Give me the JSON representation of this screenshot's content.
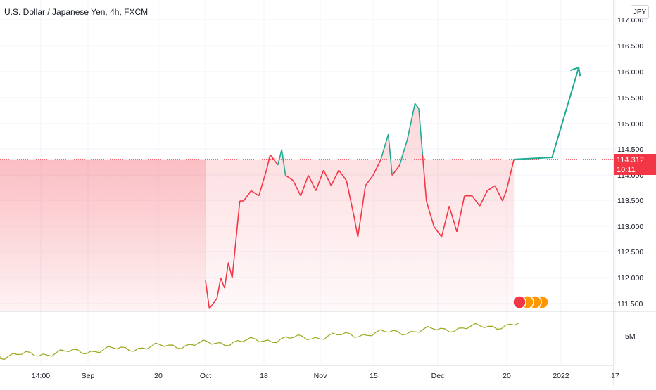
{
  "chart_title": "U.S. Dollar / Japanese Yen, 4h, FXCM",
  "currency_button": "JPY",
  "last_price": {
    "value": "114.312",
    "countdown": "10:11"
  },
  "volume_label": "5M",
  "colors": {
    "down": "#f23645",
    "up": "#22ab94",
    "volume": "#9aa617",
    "grid": "#f0f3fa"
  },
  "chart_data": {
    "type": "line",
    "title": "U.S. Dollar / Japanese Yen, 4h, FXCM",
    "y_ticks": [
      "111.500",
      "112.000",
      "112.500",
      "113.000",
      "113.500",
      "114.000",
      "114.500",
      "115.000",
      "115.500",
      "116.000",
      "116.500",
      "117.000"
    ],
    "x_ticks": [
      "14:00",
      "Sep",
      "20",
      "Oct",
      "18",
      "Nov",
      "15",
      "Dec",
      "20",
      "2022",
      "17"
    ],
    "ylim": [
      111.4,
      117.2
    ],
    "price_series": [
      {
        "t": "Oct-01",
        "y": 111.95
      },
      {
        "t": "Oct-02",
        "y": 111.4
      },
      {
        "t": "Oct-04",
        "y": 111.6
      },
      {
        "t": "Oct-05",
        "y": 112.0
      },
      {
        "t": "Oct-06",
        "y": 111.8
      },
      {
        "t": "Oct-07",
        "y": 112.3
      },
      {
        "t": "Oct-08",
        "y": 112.0
      },
      {
        "t": "Oct-10",
        "y": 113.5
      },
      {
        "t": "Oct-11",
        "y": 113.5
      },
      {
        "t": "Oct-13",
        "y": 113.7
      },
      {
        "t": "Oct-15",
        "y": 113.6
      },
      {
        "t": "Oct-17",
        "y": 114.1
      },
      {
        "t": "Oct-18",
        "y": 114.4
      },
      {
        "t": "Oct-20",
        "y": 114.2
      },
      {
        "t": "Oct-21",
        "y": 114.5
      },
      {
        "t": "Oct-22",
        "y": 114.0
      },
      {
        "t": "Oct-24",
        "y": 113.9
      },
      {
        "t": "Oct-26",
        "y": 113.6
      },
      {
        "t": "Oct-28",
        "y": 114.0
      },
      {
        "t": "Oct-30",
        "y": 113.7
      },
      {
        "t": "Nov-01",
        "y": 114.1
      },
      {
        "t": "Nov-03",
        "y": 113.8
      },
      {
        "t": "Nov-05",
        "y": 114.1
      },
      {
        "t": "Nov-07",
        "y": 113.9
      },
      {
        "t": "Nov-09",
        "y": 113.2
      },
      {
        "t": "Nov-10",
        "y": 112.8
      },
      {
        "t": "Nov-12",
        "y": 113.8
      },
      {
        "t": "Nov-14",
        "y": 114.0
      },
      {
        "t": "Nov-16",
        "y": 114.3
      },
      {
        "t": "Nov-18",
        "y": 114.8
      },
      {
        "t": "Nov-19",
        "y": 114.0
      },
      {
        "t": "Nov-21",
        "y": 114.2
      },
      {
        "t": "Nov-23",
        "y": 114.7
      },
      {
        "t": "Nov-25",
        "y": 115.4
      },
      {
        "t": "Nov-26",
        "y": 115.3
      },
      {
        "t": "Nov-27",
        "y": 114.4
      },
      {
        "t": "Nov-28",
        "y": 113.5
      },
      {
        "t": "Nov-30",
        "y": 113.0
      },
      {
        "t": "Dec-02",
        "y": 112.8
      },
      {
        "t": "Dec-04",
        "y": 113.4
      },
      {
        "t": "Dec-06",
        "y": 112.9
      },
      {
        "t": "Dec-08",
        "y": 113.6
      },
      {
        "t": "Dec-10",
        "y": 113.6
      },
      {
        "t": "Dec-12",
        "y": 113.4
      },
      {
        "t": "Dec-14",
        "y": 113.7
      },
      {
        "t": "Dec-16",
        "y": 113.8
      },
      {
        "t": "Dec-18",
        "y": 113.5
      },
      {
        "t": "Dec-19",
        "y": 113.7
      },
      {
        "t": "Dec-20",
        "y": 114.0
      },
      {
        "t": "Dec-21",
        "y": 114.31
      }
    ],
    "projection": [
      {
        "t": "Dec-21",
        "y": 114.31
      },
      {
        "t": "Dec-31",
        "y": 114.35
      },
      {
        "t": "Jan-07",
        "y": 116.1
      }
    ],
    "last_price": 114.312
  }
}
